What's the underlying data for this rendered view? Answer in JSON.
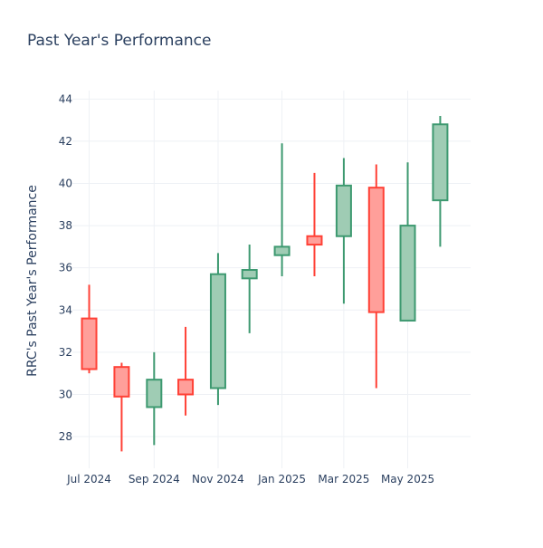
{
  "chart_data": {
    "type": "candlestick",
    "title": "Past Year's Performance",
    "xlabel": "",
    "ylabel": "RRC's Past Year's Performance",
    "ylim": [
      26.5,
      44.4
    ],
    "yticks": [
      28,
      30,
      32,
      34,
      36,
      38,
      40,
      42,
      44
    ],
    "xrange": [
      "2024-06-15",
      "2025-06-30"
    ],
    "xticks": [
      {
        "date": "2024-07-01",
        "label": "Jul 2024"
      },
      {
        "date": "2024-09-01",
        "label": "Sep 2024"
      },
      {
        "date": "2024-11-01",
        "label": "Nov 2024"
      },
      {
        "date": "2025-01-01",
        "label": "Jan 2025"
      },
      {
        "date": "2025-03-01",
        "label": "Mar 2025"
      },
      {
        "date": "2025-05-01",
        "label": "May 2025"
      }
    ],
    "colors": {
      "increasing_line": "#3d9970",
      "increasing_fill": "#9fccb4",
      "decreasing_line": "#ff4136",
      "decreasing_fill": "#ff9f9a",
      "grid": "#eef1f5",
      "text": "#2a3f5f"
    },
    "candles": [
      {
        "date": "2024-07-01",
        "open": 33.6,
        "high": 35.2,
        "low": 31.0,
        "close": 31.2
      },
      {
        "date": "2024-08-01",
        "open": 31.3,
        "high": 31.5,
        "low": 27.3,
        "close": 29.9
      },
      {
        "date": "2024-09-01",
        "open": 29.4,
        "high": 32.0,
        "low": 27.6,
        "close": 30.7
      },
      {
        "date": "2024-10-01",
        "open": 30.7,
        "high": 33.2,
        "low": 29.0,
        "close": 30.0
      },
      {
        "date": "2024-11-01",
        "open": 30.3,
        "high": 36.7,
        "low": 29.5,
        "close": 35.7
      },
      {
        "date": "2024-12-01",
        "open": 35.5,
        "high": 37.1,
        "low": 32.9,
        "close": 35.9
      },
      {
        "date": "2025-01-01",
        "open": 36.6,
        "high": 41.9,
        "low": 35.6,
        "close": 37.0
      },
      {
        "date": "2025-02-01",
        "open": 37.5,
        "high": 40.5,
        "low": 35.6,
        "close": 37.1
      },
      {
        "date": "2025-03-01",
        "open": 37.5,
        "high": 41.2,
        "low": 34.3,
        "close": 39.9
      },
      {
        "date": "2025-04-01",
        "open": 39.8,
        "high": 40.9,
        "low": 30.3,
        "close": 33.9
      },
      {
        "date": "2025-05-01",
        "open": 33.5,
        "high": 41.0,
        "low": 33.5,
        "close": 38.0
      },
      {
        "date": "2025-06-01",
        "open": 39.2,
        "high": 43.2,
        "low": 37.0,
        "close": 42.8
      }
    ]
  }
}
